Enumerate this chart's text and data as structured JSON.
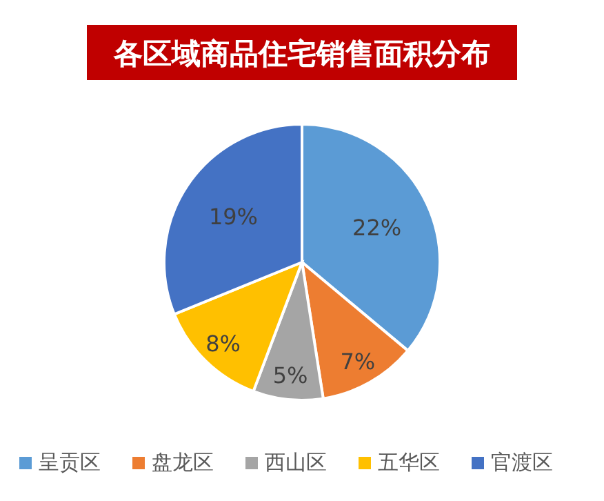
{
  "chart_data": {
    "type": "pie",
    "title": "各区域商品住宅销售面积分布",
    "categories": [
      "呈贡区",
      "盘龙区",
      "西山区",
      "五华区",
      "官渡区"
    ],
    "values": [
      22,
      7,
      5,
      8,
      19
    ],
    "colors": [
      "#5b9bd5",
      "#ed7d31",
      "#a5a5a5",
      "#ffc000",
      "#4472c4"
    ],
    "value_labels": [
      "22%",
      "7%",
      "5%",
      "8%",
      "19%"
    ],
    "legend": "bottom"
  }
}
